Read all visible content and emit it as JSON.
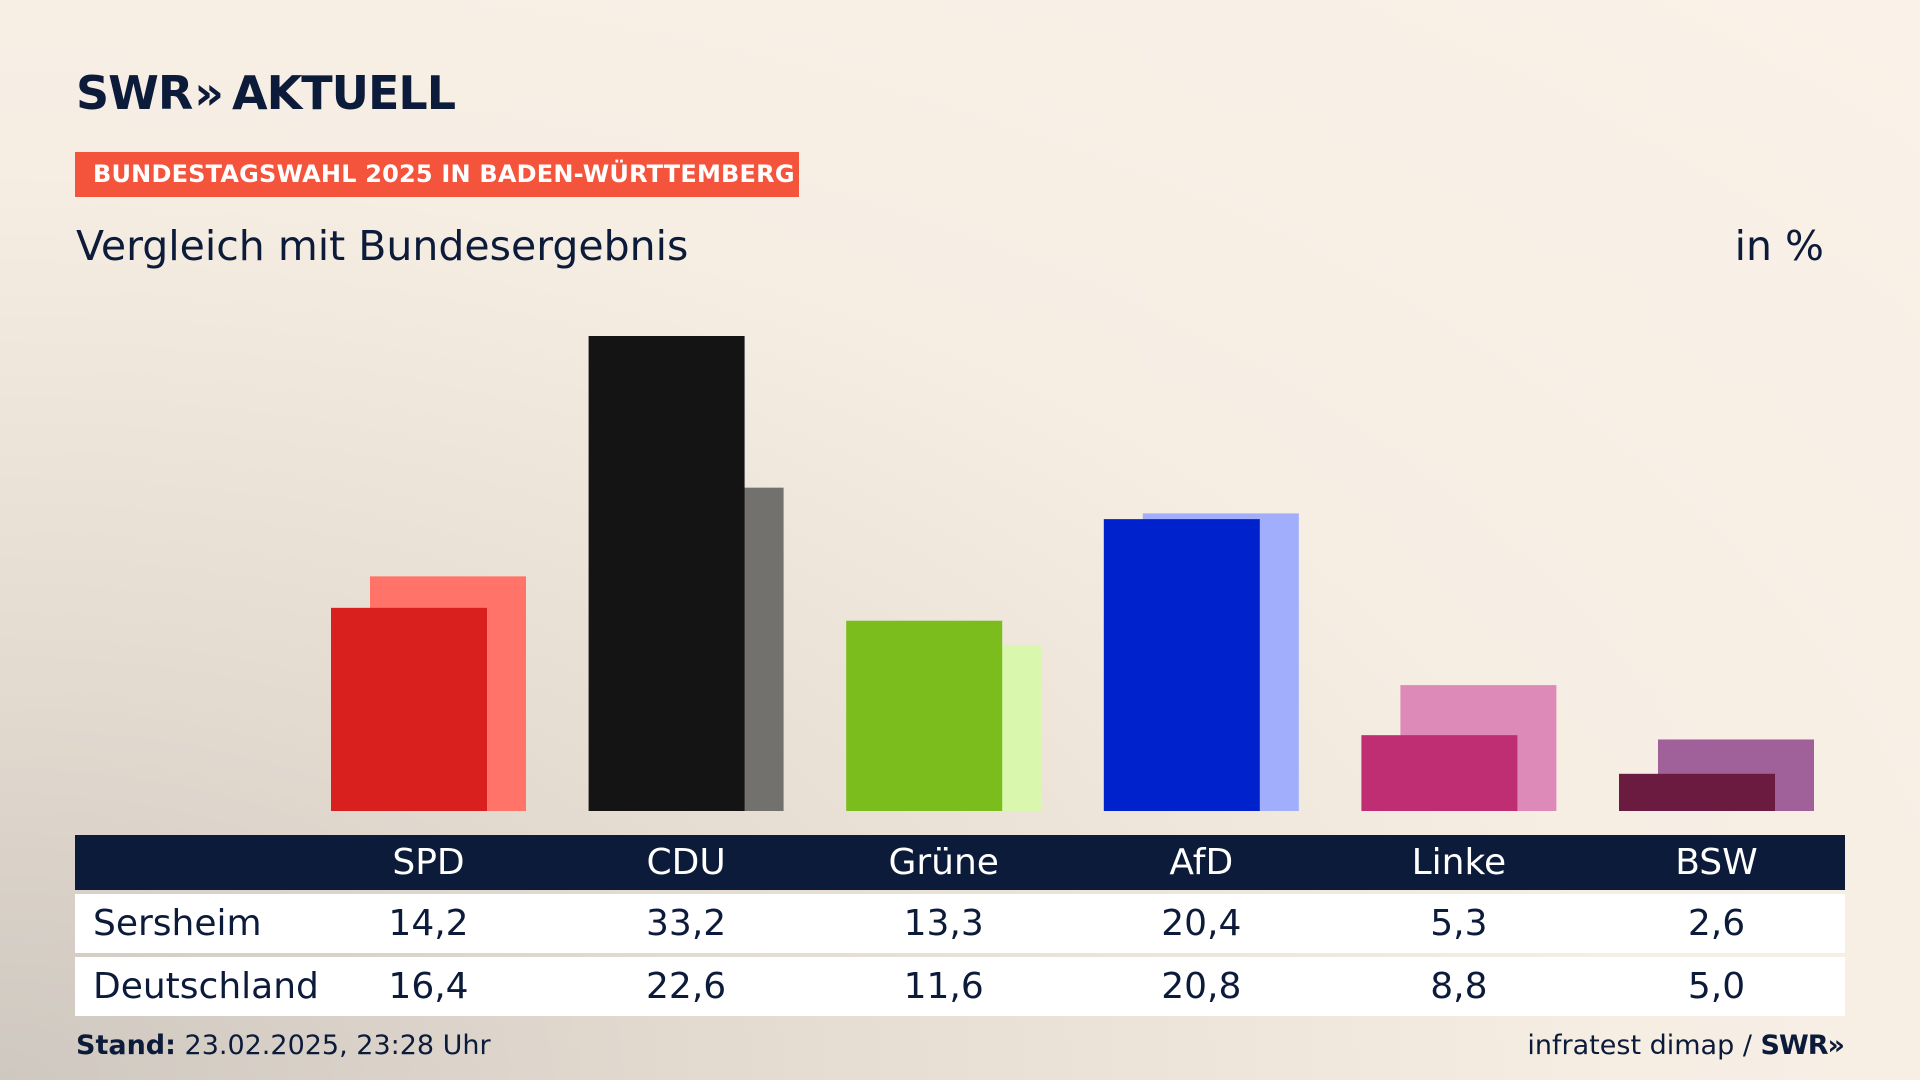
{
  "header": {
    "logo_text": "SWR",
    "logo_chevrons": "»",
    "logo_suffix": "AKTUELL",
    "tag": "BUNDESTAGSWAHL 2025 IN BADEN-WÜRTTEMBERG",
    "subtitle": "Vergleich mit Bundesergebnis",
    "unit": "in %"
  },
  "colors": {
    "tag_bg": "#f5543c",
    "navy": "#0d1b3a",
    "SPD": [
      "#d9201f",
      "#ff7369"
    ],
    "CDU": [
      "#141414",
      "#73716e"
    ],
    "Grüne": [
      "#7abd1c",
      "#d9f7ad"
    ],
    "AfD": [
      "#0022cc",
      "#a0aefc"
    ],
    "Linke": [
      "#bf2d73",
      "#de8ab8"
    ],
    "BSW": [
      "#6b1a40",
      "#a0609a"
    ]
  },
  "chart_data": {
    "type": "bar",
    "categories": [
      "SPD",
      "CDU",
      "Grüne",
      "AfD",
      "Linke",
      "BSW"
    ],
    "series": [
      {
        "name": "Sersheim",
        "values": [
          14.2,
          33.2,
          13.3,
          20.4,
          5.3,
          2.6
        ]
      },
      {
        "name": "Deutschland",
        "values": [
          16.4,
          22.6,
          11.6,
          20.8,
          8.8,
          5.0
        ]
      }
    ],
    "title": "Vergleich mit Bundesergebnis",
    "ylabel": "in %",
    "ylim": [
      0,
      33.2
    ],
    "grid": false
  },
  "table": {
    "rows": [
      {
        "label": "Sersheim",
        "values": [
          "14,2",
          "33,2",
          "13,3",
          "20,4",
          "5,3",
          "2,6"
        ]
      },
      {
        "label": "Deutschland",
        "values": [
          "16,4",
          "22,6",
          "11,6",
          "20,8",
          "8,8",
          "5,0"
        ]
      }
    ]
  },
  "footer": {
    "stand_label": "Stand:",
    "stand_value": "23.02.2025, 23:28 Uhr",
    "source": "infratest dimap /",
    "source_logo": "SWR»"
  }
}
